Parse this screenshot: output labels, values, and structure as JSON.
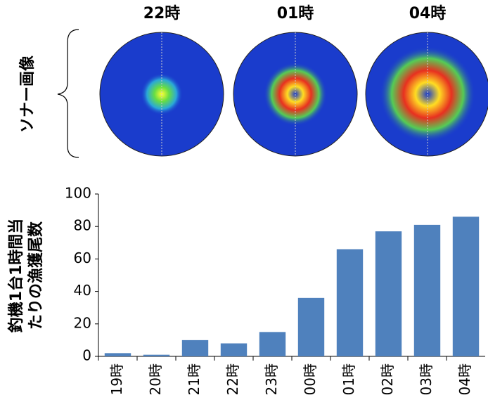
{
  "sonar_panel": {
    "label": "ソナー画像",
    "times": [
      "22時",
      "01時",
      "04時"
    ]
  },
  "chart_data": {
    "type": "bar",
    "y_label": [
      "釣機1台1時間当",
      "たりの漁獲尾数"
    ],
    "categories": [
      "19時",
      "20時",
      "21時",
      "22時",
      "23時",
      "00時",
      "01時",
      "02時",
      "03時",
      "04時"
    ],
    "values": [
      2,
      1,
      10,
      8,
      15,
      36,
      66,
      77,
      81,
      86
    ],
    "color": "#4f81bd",
    "ylim": [
      0,
      100
    ],
    "yticks": [
      0,
      20,
      40,
      60,
      80,
      100
    ],
    "grid": false
  }
}
